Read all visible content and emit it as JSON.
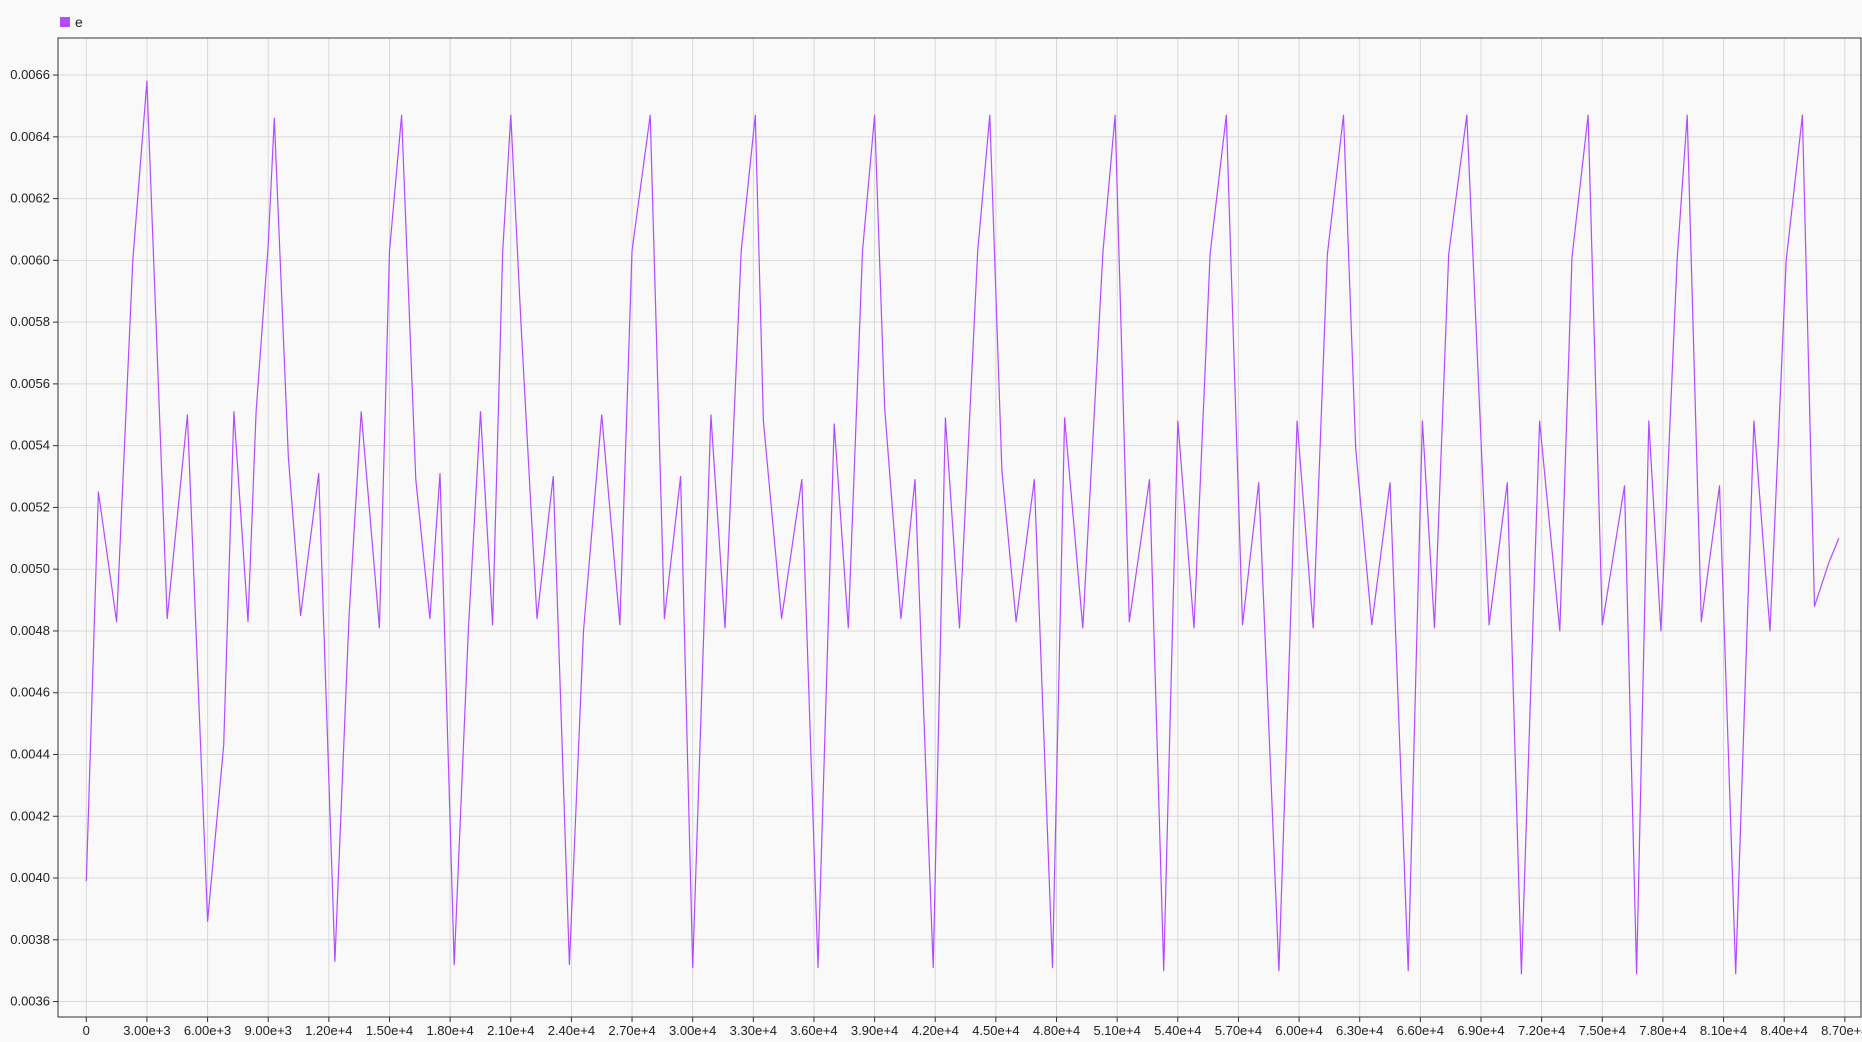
{
  "legend": {
    "label": "e",
    "color": "#b24bff"
  },
  "chart_data": {
    "type": "line",
    "title": "",
    "xlabel": "",
    "ylabel": "",
    "xlim": [
      -1400,
      87800
    ],
    "ylim": [
      0.00355,
      0.00672
    ],
    "grid": true,
    "legend_position": "top-left",
    "x_ticks": [
      0,
      3000,
      6000,
      9000,
      12000,
      15000,
      18000,
      21000,
      24000,
      27000,
      30000,
      33000,
      36000,
      39000,
      42000,
      45000,
      48000,
      51000,
      54000,
      57000,
      60000,
      63000,
      66000,
      69000,
      72000,
      75000,
      78000,
      81000,
      84000,
      87000
    ],
    "x_tick_labels": [
      "0",
      "3.00e+3",
      "6.00e+3",
      "9.00e+3",
      "1.20e+4",
      "1.50e+4",
      "1.80e+4",
      "2.10e+4",
      "2.40e+4",
      "2.70e+4",
      "3.00e+4",
      "3.30e+4",
      "3.60e+4",
      "3.90e+4",
      "4.20e+4",
      "4.50e+4",
      "4.80e+4",
      "5.10e+4",
      "5.40e+4",
      "5.70e+4",
      "6.00e+4",
      "6.30e+4",
      "6.60e+4",
      "6.90e+4",
      "7.20e+4",
      "7.50e+4",
      "7.80e+4",
      "8.10e+4",
      "8.40e+4",
      "8.70e+4"
    ],
    "y_ticks": [
      0.0036,
      0.0038,
      0.004,
      0.0042,
      0.0044,
      0.0046,
      0.0048,
      0.005,
      0.0052,
      0.0054,
      0.0056,
      0.0058,
      0.006,
      0.0062,
      0.0064,
      0.0066
    ],
    "y_tick_labels": [
      "0.0036",
      "0.0038",
      "0.0040",
      "0.0042",
      "0.0044",
      "0.0046",
      "0.0048",
      "0.0050",
      "0.0052",
      "0.0054",
      "0.0056",
      "0.0058",
      "0.0060",
      "0.0062",
      "0.0064",
      "0.0066"
    ],
    "series": [
      {
        "name": "e",
        "color": "#b24bff",
        "x": [
          0,
          600,
          1500,
          2300,
          3000,
          4000,
          5000,
          6000,
          6800,
          7300,
          8000,
          8400,
          9000,
          9300,
          10000,
          10600,
          11500,
          12300,
          13000,
          13600,
          14500,
          15000,
          15600,
          16300,
          17000,
          17500,
          18200,
          18900,
          19500,
          20100,
          20600,
          21000,
          21500,
          22300,
          23100,
          23900,
          24600,
          25500,
          26400,
          27000,
          27900,
          28600,
          29400,
          30000,
          30900,
          31600,
          32400,
          33100,
          33500,
          34400,
          35400,
          36200,
          37000,
          37700,
          38400,
          39000,
          39500,
          40300,
          41000,
          41900,
          42500,
          43200,
          44100,
          44700,
          45300,
          46000,
          46900,
          47800,
          48400,
          49300,
          50300,
          50900,
          51600,
          52600,
          53300,
          54000,
          54800,
          55600,
          56400,
          57200,
          58000,
          59000,
          59900,
          60700,
          61400,
          62200,
          62800,
          63600,
          64500,
          65400,
          66100,
          66700,
          67400,
          68300,
          69400,
          70300,
          71000,
          71900,
          72900,
          73500,
          74300,
          75000,
          76100,
          76700,
          77300,
          77900,
          78700,
          79200,
          79900,
          80800,
          81600,
          82500,
          83300,
          84100,
          84900,
          85500,
          86200,
          86700
        ],
        "values": [
          0.00399,
          0.00525,
          0.00483,
          0.006,
          0.00658,
          0.00484,
          0.0055,
          0.00386,
          0.00443,
          0.00551,
          0.00483,
          0.00551,
          0.00605,
          0.00646,
          0.00536,
          0.00485,
          0.00531,
          0.00373,
          0.00485,
          0.00551,
          0.00481,
          0.00603,
          0.00647,
          0.00529,
          0.00484,
          0.00531,
          0.00372,
          0.0048,
          0.00551,
          0.00482,
          0.00603,
          0.00647,
          0.0058,
          0.00484,
          0.0053,
          0.00372,
          0.0048,
          0.0055,
          0.00482,
          0.00603,
          0.00647,
          0.00484,
          0.0053,
          0.00371,
          0.0055,
          0.00481,
          0.00603,
          0.00647,
          0.00548,
          0.00484,
          0.00529,
          0.00371,
          0.00547,
          0.00481,
          0.00603,
          0.00647,
          0.00552,
          0.00484,
          0.00529,
          0.00371,
          0.00549,
          0.00481,
          0.00603,
          0.00647,
          0.00532,
          0.00483,
          0.00529,
          0.00371,
          0.00549,
          0.00481,
          0.00603,
          0.00647,
          0.00483,
          0.00529,
          0.0037,
          0.00548,
          0.00481,
          0.00602,
          0.00647,
          0.00482,
          0.00528,
          0.0037,
          0.00548,
          0.00481,
          0.00602,
          0.00647,
          0.00539,
          0.00482,
          0.00528,
          0.0037,
          0.00548,
          0.00481,
          0.00602,
          0.00647,
          0.00482,
          0.00528,
          0.00369,
          0.00548,
          0.0048,
          0.00601,
          0.00647,
          0.00482,
          0.00527,
          0.00369,
          0.00548,
          0.0048,
          0.006,
          0.00647,
          0.00483,
          0.00527,
          0.00369,
          0.00548,
          0.0048,
          0.006,
          0.00647,
          0.00488,
          0.00502,
          0.0051
        ]
      }
    ]
  }
}
